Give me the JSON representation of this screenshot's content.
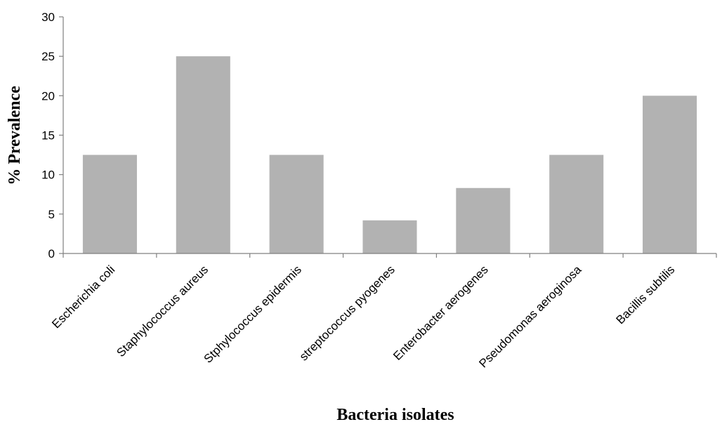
{
  "chart_data": {
    "type": "bar",
    "categories": [
      "Escherichia coli",
      "Staphylococcus aureus",
      "Stphylococcus epidermis",
      "streptococcus pyogenes",
      "Enterobacter aerogenes",
      "Pseudomonas aeroginosa",
      "Bacillis subtilis"
    ],
    "values": [
      12.5,
      25,
      12.5,
      4.2,
      8.3,
      12.5,
      20
    ],
    "xlabel": "Bacteria isolates",
    "ylabel": "% Prevalence",
    "ylim": [
      0,
      30
    ],
    "yticks": [
      "0",
      "5",
      "10",
      "15",
      "20",
      "25",
      "30"
    ],
    "grid": false,
    "legend": "none",
    "bar_color": "#b2b2b2"
  }
}
